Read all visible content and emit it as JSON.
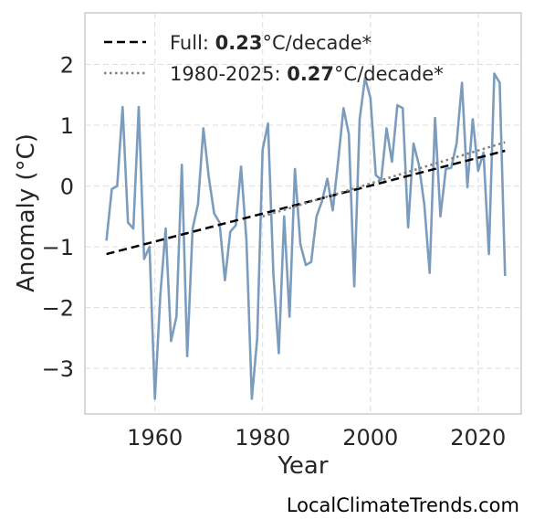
{
  "chart_data": {
    "type": "line",
    "xlabel": "Year",
    "ylabel": "Anomaly (°C)",
    "xlim": [
      1947,
      2028
    ],
    "ylim": [
      -3.75,
      2.85
    ],
    "xticks": [
      1960,
      1980,
      2000,
      2020
    ],
    "yticks": [
      2,
      1,
      0,
      -1,
      -2,
      -3
    ],
    "ytick_labels": [
      "2",
      "1",
      "0",
      "−1",
      "−2",
      "−3"
    ],
    "grid": true,
    "legend_position": "top-left",
    "x": [
      1951,
      1952,
      1953,
      1954,
      1955,
      1956,
      1957,
      1958,
      1959,
      1960,
      1961,
      1962,
      1963,
      1964,
      1965,
      1966,
      1967,
      1968,
      1969,
      1970,
      1971,
      1972,
      1973,
      1974,
      1975,
      1976,
      1977,
      1978,
      1979,
      1980,
      1981,
      1982,
      1983,
      1984,
      1985,
      1986,
      1987,
      1988,
      1989,
      1990,
      1991,
      1992,
      1993,
      1994,
      1995,
      1996,
      1997,
      1998,
      1999,
      2000,
      2001,
      2002,
      2003,
      2004,
      2005,
      2006,
      2007,
      2008,
      2009,
      2010,
      2011,
      2012,
      2013,
      2014,
      2015,
      2016,
      2017,
      2018,
      2019,
      2020,
      2021,
      2022,
      2023,
      2024,
      2025
    ],
    "series": [
      {
        "values": [
          -0.9,
          -0.05,
          0.0,
          1.3,
          -0.6,
          -0.7,
          1.3,
          -1.2,
          -1.0,
          -3.5,
          -1.8,
          -0.7,
          -2.55,
          -2.15,
          0.35,
          -2.8,
          -0.7,
          -0.3,
          0.95,
          0.15,
          -0.45,
          -0.6,
          -1.55,
          -0.75,
          -0.65,
          0.32,
          -0.9,
          -3.5,
          -2.5,
          0.6,
          1.03,
          -1.45,
          -2.75,
          -0.5,
          -2.15,
          0.28,
          -0.95,
          -1.3,
          -1.25,
          -0.5,
          -0.25,
          0.12,
          -0.4,
          0.4,
          1.28,
          0.85,
          -1.65,
          1.1,
          1.78,
          1.45,
          0.18,
          0.1,
          0.95,
          0.4,
          1.33,
          1.28,
          -0.68,
          0.7,
          0.35,
          -0.3,
          -1.43,
          1.12,
          -0.5,
          0.28,
          0.3,
          0.7,
          1.7,
          -0.02,
          1.1,
          0.25,
          0.55,
          -1.12,
          1.85,
          1.7,
          -1.48
        ],
        "color": "#7b9cbd"
      }
    ],
    "trend_lines": [
      {
        "label": "Full: ",
        "bold": "0.23",
        "suffix": "°C/decade*",
        "x": [
          1951,
          2025
        ],
        "y": [
          -1.12,
          0.58
        ],
        "color": "#000000",
        "style": "dashed"
      },
      {
        "label": "1980-2025: ",
        "bold": "0.27",
        "suffix": "°C/decade*",
        "x": [
          1980,
          2025
        ],
        "y": [
          -0.5,
          0.72
        ],
        "color": "#808080",
        "style": "dotted"
      }
    ]
  },
  "watermark": "LocalClimateTrends.com"
}
